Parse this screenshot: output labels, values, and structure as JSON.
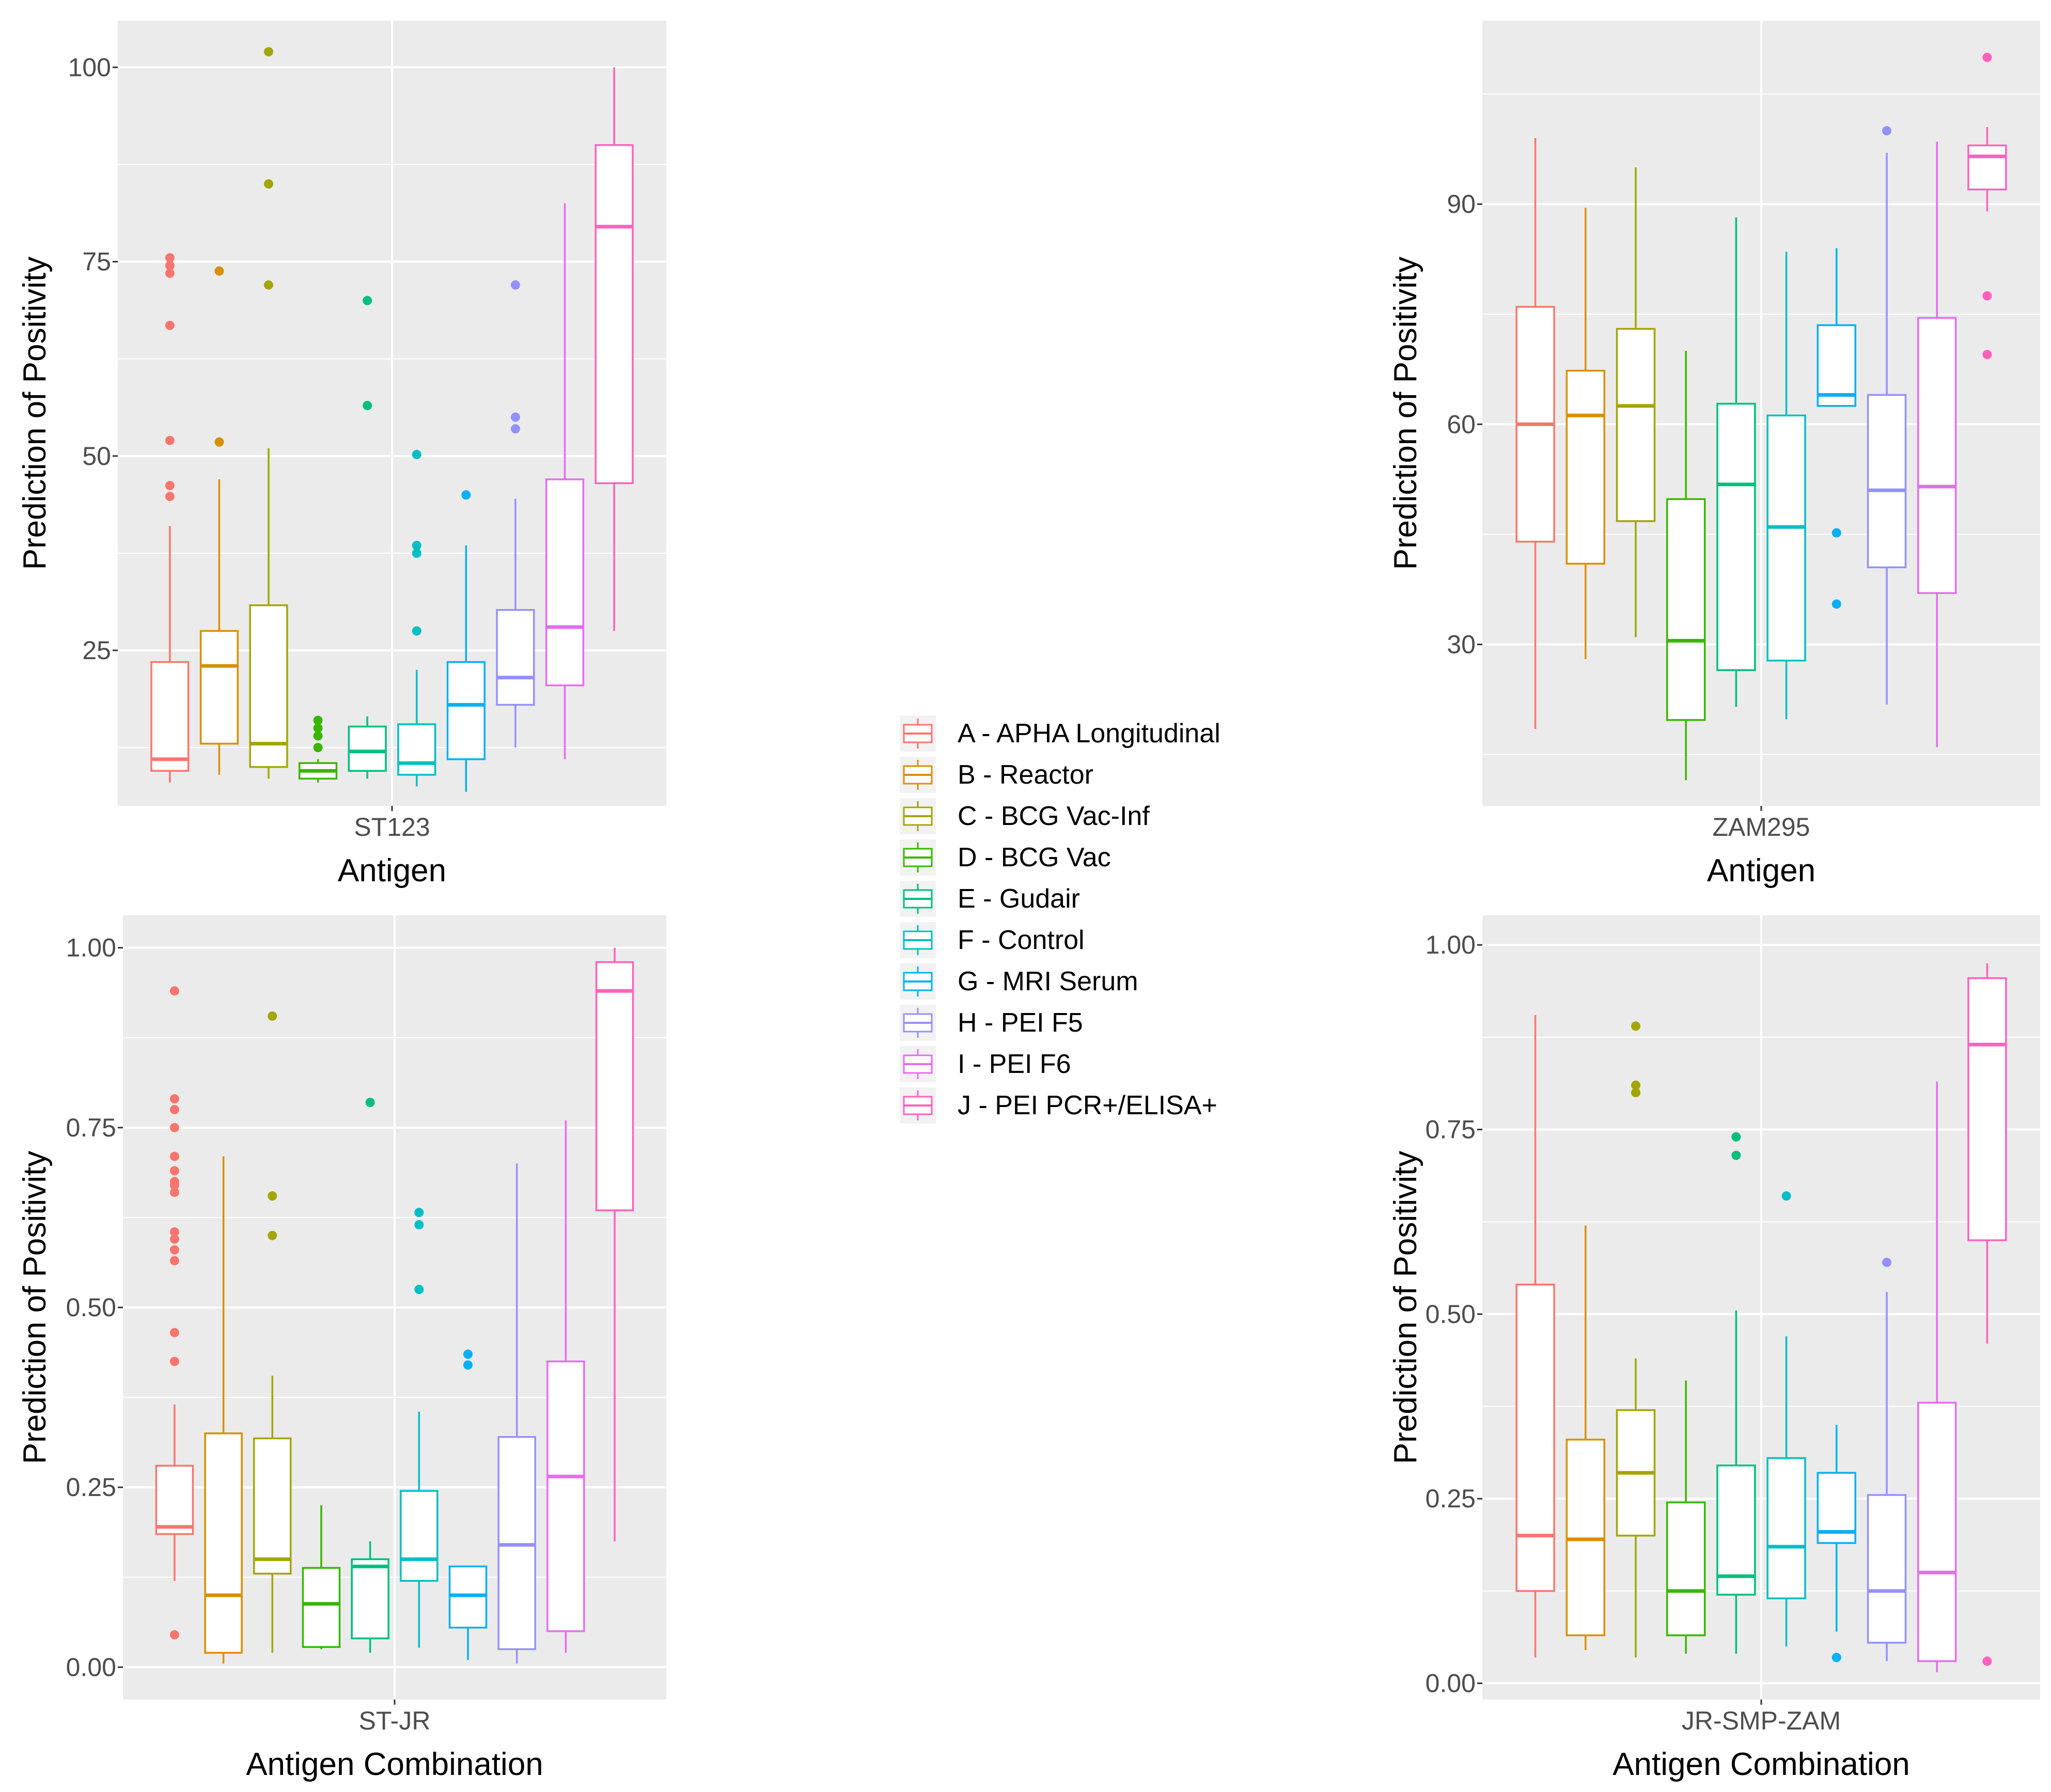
{
  "groups": [
    {
      "name": "A - APHA Longitudinal",
      "color": "#F8766D"
    },
    {
      "name": "B - Reactor",
      "color": "#D89000"
    },
    {
      "name": "C - BCG Vac-Inf",
      "color": "#A3A500"
    },
    {
      "name": "D - BCG Vac",
      "color": "#39B600"
    },
    {
      "name": "E - Gudair",
      "color": "#00BF7D"
    },
    {
      "name": "F - Control",
      "color": "#00BFC4"
    },
    {
      "name": "G - MRI Serum",
      "color": "#00B0F6"
    },
    {
      "name": "H - PEI F5",
      "color": "#9590FF"
    },
    {
      "name": "I - PEI F6",
      "color": "#E76BF3"
    },
    {
      "name": "J - PEI PCR+/ELISA+",
      "color": "#FF62BC"
    }
  ],
  "chart_data": [
    {
      "type": "box",
      "ylabel": "Prediction of Positivity",
      "xlabel": "Antigen",
      "category": "ST123",
      "ylim": [
        5,
        106
      ],
      "ticks": [
        25,
        50,
        75,
        100
      ],
      "tick_labels": [
        "25",
        "50",
        "75",
        "100"
      ],
      "boxes": [
        {
          "min": 8,
          "q1": 9.5,
          "median": 11,
          "q3": 23.5,
          "max": 41,
          "outliers": [
            44.8,
            46.2,
            52,
            66.8,
            73.5,
            74.5,
            75.5
          ]
        },
        {
          "min": 9,
          "q1": 13,
          "median": 23,
          "q3": 27.5,
          "max": 47,
          "outliers": [
            51.8,
            73.8
          ]
        },
        {
          "min": 8.5,
          "q1": 10,
          "median": 13,
          "q3": 30.8,
          "max": 51,
          "outliers": [
            72,
            85,
            102
          ]
        },
        {
          "min": 8,
          "q1": 8.5,
          "median": 9.5,
          "q3": 10.5,
          "max": 11,
          "outliers": [
            12.5,
            14,
            15,
            16
          ]
        },
        {
          "min": 8.5,
          "q1": 9.5,
          "median": 12,
          "q3": 15.2,
          "max": 16.5,
          "outliers": [
            56.5,
            70
          ]
        },
        {
          "min": 7.5,
          "q1": 9,
          "median": 10.5,
          "q3": 15.5,
          "max": 22.5,
          "outliers": [
            27.5,
            37.5,
            38.5,
            50.2
          ]
        },
        {
          "min": 6.8,
          "q1": 11,
          "median": 18,
          "q3": 23.5,
          "max": 38.5,
          "outliers": [
            45
          ]
        },
        {
          "min": 12.5,
          "q1": 18,
          "median": 21.5,
          "q3": 30.2,
          "max": 44.5,
          "outliers": [
            53.5,
            55,
            72
          ]
        },
        {
          "min": 11,
          "q1": 20.5,
          "median": 28,
          "q3": 47,
          "max": 82.5,
          "outliers": []
        },
        {
          "min": 27.5,
          "q1": 46.5,
          "median": 79.5,
          "q3": 90,
          "max": 100,
          "outliers": []
        }
      ]
    },
    {
      "type": "box",
      "ylabel": "Prediction of Positivity",
      "xlabel": "Antigen",
      "category": "ZAM295",
      "ylim": [
        8,
        115
      ],
      "ticks": [
        30,
        60,
        90
      ],
      "tick_labels": [
        "30",
        "60",
        "90"
      ],
      "boxes": [
        {
          "min": 18.5,
          "q1": 44,
          "median": 60,
          "q3": 76,
          "max": 99,
          "outliers": []
        },
        {
          "min": 28,
          "q1": 41,
          "median": 61.2,
          "q3": 67.3,
          "max": 89.5,
          "outliers": []
        },
        {
          "min": 31,
          "q1": 46.8,
          "median": 62.5,
          "q3": 73,
          "max": 95,
          "outliers": []
        },
        {
          "min": 11.5,
          "q1": 19.7,
          "median": 30.5,
          "q3": 49.8,
          "max": 70,
          "outliers": []
        },
        {
          "min": 21.5,
          "q1": 26.5,
          "median": 51.8,
          "q3": 62.8,
          "max": 88.2,
          "outliers": []
        },
        {
          "min": 19.8,
          "q1": 27.8,
          "median": 46,
          "q3": 61.2,
          "max": 83.5,
          "outliers": []
        },
        {
          "min": 62.5,
          "q1": 62.5,
          "median": 64,
          "q3": 73.5,
          "max": 84,
          "outliers": [
            35.5,
            45.2
          ]
        },
        {
          "min": 21.8,
          "q1": 40.5,
          "median": 51,
          "q3": 64,
          "max": 97,
          "outliers": [
            100
          ]
        },
        {
          "min": 16,
          "q1": 37,
          "median": 51.5,
          "q3": 74.5,
          "max": 98.5,
          "outliers": []
        },
        {
          "min": 89,
          "q1": 92,
          "median": 96.5,
          "q3": 98,
          "max": 100.5,
          "outliers": [
            69.5,
            77.5,
            110
          ]
        }
      ]
    },
    {
      "type": "box",
      "ylabel": "Prediction of Positivity",
      "xlabel": "Antigen Combination",
      "category": "ST-JR",
      "ylim": [
        -0.045,
        1.045
      ],
      "ticks": [
        0,
        0.25,
        0.5,
        0.75,
        1.0
      ],
      "tick_labels": [
        "0.00",
        "0.25",
        "0.50",
        "0.75",
        "1.00"
      ],
      "boxes": [
        {
          "min": 0.12,
          "q1": 0.185,
          "median": 0.195,
          "q3": 0.28,
          "max": 0.365,
          "outliers": [
            0.045,
            0.425,
            0.465,
            0.565,
            0.58,
            0.595,
            0.605,
            0.66,
            0.67,
            0.675,
            0.69,
            0.71,
            0.75,
            0.775,
            0.79,
            0.94
          ]
        },
        {
          "min": 0.005,
          "q1": 0.02,
          "median": 0.1,
          "q3": 0.325,
          "max": 0.71,
          "outliers": []
        },
        {
          "min": 0.02,
          "q1": 0.13,
          "median": 0.15,
          "q3": 0.318,
          "max": 0.405,
          "outliers": [
            0.6,
            0.655,
            0.905
          ]
        },
        {
          "min": 0.025,
          "q1": 0.028,
          "median": 0.088,
          "q3": 0.138,
          "max": 0.225,
          "outliers": []
        },
        {
          "min": 0.02,
          "q1": 0.04,
          "median": 0.14,
          "q3": 0.15,
          "max": 0.175,
          "outliers": [
            0.785
          ]
        },
        {
          "min": 0.027,
          "q1": 0.12,
          "median": 0.15,
          "q3": 0.245,
          "max": 0.355,
          "outliers": [
            0.525,
            0.615,
            0.632
          ]
        },
        {
          "min": 0.01,
          "q1": 0.055,
          "median": 0.1,
          "q3": 0.14,
          "max": 0.14,
          "outliers": [
            0.42,
            0.435
          ]
        },
        {
          "min": 0.005,
          "q1": 0.025,
          "median": 0.17,
          "q3": 0.32,
          "max": 0.7,
          "outliers": []
        },
        {
          "min": 0.02,
          "q1": 0.05,
          "median": 0.265,
          "q3": 0.425,
          "max": 0.76,
          "outliers": []
        },
        {
          "min": 0.175,
          "q1": 0.635,
          "median": 0.94,
          "q3": 0.98,
          "max": 1.0,
          "outliers": []
        }
      ]
    },
    {
      "type": "box",
      "ylabel": "Prediction of Positivity",
      "xlabel": "Antigen Combination",
      "category": "JR-SMP-ZAM",
      "ylim": [
        -0.022,
        1.04
      ],
      "ticks": [
        0,
        0.25,
        0.5,
        0.75,
        1.0
      ],
      "tick_labels": [
        "0.00",
        "0.25",
        "0.50",
        "0.75",
        "1.00"
      ],
      "boxes": [
        {
          "min": 0.035,
          "q1": 0.125,
          "median": 0.2,
          "q3": 0.54,
          "max": 0.905,
          "outliers": []
        },
        {
          "min": 0.045,
          "q1": 0.065,
          "median": 0.195,
          "q3": 0.33,
          "max": 0.62,
          "outliers": []
        },
        {
          "min": 0.035,
          "q1": 0.2,
          "median": 0.285,
          "q3": 0.37,
          "max": 0.44,
          "outliers": [
            0.8,
            0.81,
            0.89
          ]
        },
        {
          "min": 0.04,
          "q1": 0.065,
          "median": 0.125,
          "q3": 0.245,
          "max": 0.41,
          "outliers": []
        },
        {
          "min": 0.04,
          "q1": 0.12,
          "median": 0.145,
          "q3": 0.295,
          "max": 0.505,
          "outliers": [
            0.715,
            0.74
          ]
        },
        {
          "min": 0.05,
          "q1": 0.115,
          "median": 0.185,
          "q3": 0.305,
          "max": 0.47,
          "outliers": [
            0.66
          ]
        },
        {
          "min": 0.07,
          "q1": 0.19,
          "median": 0.205,
          "q3": 0.285,
          "max": 0.35,
          "outliers": [
            0.035
          ]
        },
        {
          "min": 0.03,
          "q1": 0.055,
          "median": 0.125,
          "q3": 0.255,
          "max": 0.53,
          "outliers": [
            0.57
          ]
        },
        {
          "min": 0.015,
          "q1": 0.03,
          "median": 0.15,
          "q3": 0.38,
          "max": 0.815,
          "outliers": []
        },
        {
          "min": 0.46,
          "q1": 0.6,
          "median": 0.865,
          "q3": 0.955,
          "max": 0.975,
          "outliers": [
            0.03
          ]
        }
      ]
    }
  ]
}
